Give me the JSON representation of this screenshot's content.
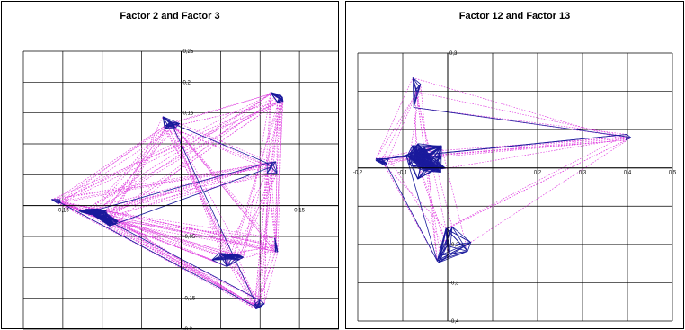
{
  "chart_data": [
    {
      "type": "scatter",
      "title": "Factor 2 and Factor 3",
      "xlabel": "",
      "ylabel": "",
      "grid": true,
      "x_ticks": [
        -0.2,
        -0.15,
        -0.1,
        -0.05,
        0,
        0.05,
        0.1,
        0.15
      ],
      "y_ticks": [
        0.25,
        0.2,
        0.15,
        0.1,
        0.05,
        0,
        -0.05,
        -0.1,
        -0.15,
        -0.2
      ],
      "x_tick_labels": {
        "-0.15": "-0,15",
        "0.15": "0,15"
      },
      "y_tick_labels": {
        "0.25": "0,25",
        "0.2": "0,2",
        "0.15": "0,15",
        "-0.05": "-0,05",
        "-0.15": "-0,15",
        "-0.2": "-0,2"
      },
      "xlim": [
        -0.2,
        0.2
      ],
      "ylim": [
        -0.2,
        0.25
      ],
      "clusters": [
        {
          "cx": -0.16,
          "cy": 0.008,
          "sx": 0.012,
          "sy": 0.006,
          "n": 6
        },
        {
          "cx": -0.11,
          "cy": -0.01,
          "sx": 0.018,
          "sy": 0.01,
          "n": 14
        },
        {
          "cx": -0.095,
          "cy": -0.022,
          "sx": 0.022,
          "sy": 0.012,
          "n": 14
        },
        {
          "cx": -0.01,
          "cy": 0.13,
          "sx": 0.018,
          "sy": 0.014,
          "n": 9
        },
        {
          "cx": 0.125,
          "cy": 0.175,
          "sx": 0.013,
          "sy": 0.014,
          "n": 9
        },
        {
          "cx": 0.118,
          "cy": 0.06,
          "sx": 0.008,
          "sy": 0.01,
          "n": 6
        },
        {
          "cx": 0.055,
          "cy": -0.08,
          "sx": 0.02,
          "sy": 0.018,
          "n": 11
        },
        {
          "cx": 0.12,
          "cy": -0.065,
          "sx": 0.008,
          "sy": 0.01,
          "n": 6
        },
        {
          "cx": 0.1,
          "cy": -0.16,
          "sx": 0.014,
          "sy": 0.01,
          "n": 7
        }
      ],
      "series": [
        {
          "name": "",
          "color": "#1a1a9c",
          "style": "solid"
        },
        {
          "name": "",
          "color": "#e040e0",
          "style": "dotted"
        }
      ]
    },
    {
      "type": "scatter",
      "title": "Factor 12 and Factor 13",
      "xlabel": "",
      "ylabel": "",
      "grid": true,
      "x_ticks": [
        -0.2,
        -0.1,
        0,
        0.1,
        0.2,
        0.3,
        0.4,
        0.5
      ],
      "y_ticks": [
        0.3,
        0.2,
        0.1,
        0,
        -0.1,
        -0.2,
        -0.3,
        -0.4
      ],
      "x_tick_labels": {
        "-0.2": "-0,2",
        "-0.1": "-0,1",
        "0.2": "0,2",
        "0.3": "0,3",
        "0.4": "0,4",
        "0.5": "0,5"
      },
      "y_tick_labels": {
        "0.3": "0,3",
        "-0.2": "-0,2",
        "-0.3": "-0,3",
        "-0.4": "-0,4"
      },
      "xlim": [
        -0.2,
        0.5
      ],
      "ylim": [
        -0.4,
        0.3
      ],
      "clusters": [
        {
          "cx": -0.05,
          "cy": 0.02,
          "sx": 0.04,
          "sy": 0.04,
          "n": 40
        },
        {
          "cx": -0.15,
          "cy": 0.02,
          "sx": 0.02,
          "sy": 0.02,
          "n": 8
        },
        {
          "cx": -0.07,
          "cy": 0.22,
          "sx": 0.015,
          "sy": 0.06,
          "n": 6
        },
        {
          "cx": 0.01,
          "cy": -0.2,
          "sx": 0.04,
          "sy": 0.07,
          "n": 10
        },
        {
          "cx": 0.38,
          "cy": 0.085,
          "sx": 0.03,
          "sy": 0.015,
          "n": 4
        }
      ],
      "series": [
        {
          "name": "",
          "color": "#1a1a9c",
          "style": "solid"
        },
        {
          "name": "",
          "color": "#e040e0",
          "style": "dotted"
        }
      ]
    }
  ]
}
